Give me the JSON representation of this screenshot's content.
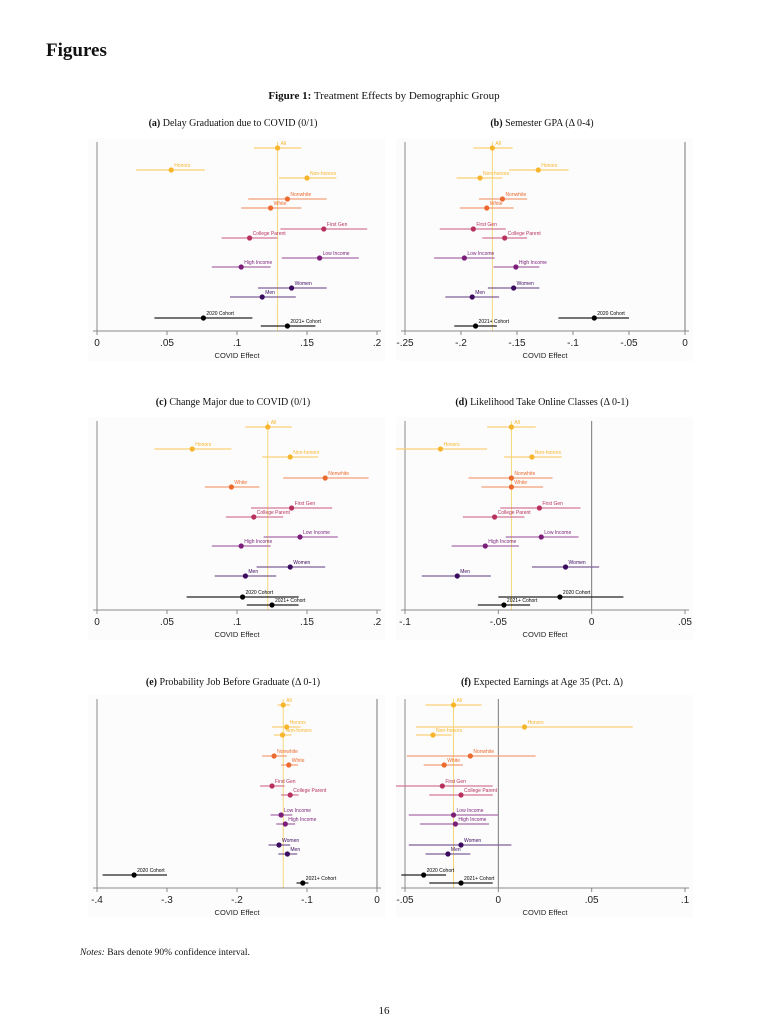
{
  "page": {
    "section_heading": "Figures",
    "figure_label": "Figure 1:",
    "figure_title": "Treatment Effects by Demographic Group",
    "notes_label": "Notes:",
    "notes_text": "Bars denote 90% confidence interval.",
    "page_number": "16"
  },
  "colors": {
    "honors_group": "#F7B52C",
    "race_group": "#EC6A2E",
    "firstgen_group": "#B8315E",
    "income_group": "#7A1E7A",
    "gender_group": "#3A0B5E",
    "cohort_group": "#000000",
    "reference_line": "#F5D46A",
    "zero_line": "#777777"
  },
  "chart_data": [
    {
      "id": "a",
      "type": "scatter",
      "panel_label": "(a)",
      "title": "Delay Graduation due to COVID (0/1)",
      "xlabel": "COVID Effect",
      "xlim": [
        0,
        0.2
      ],
      "xticks": [
        0,
        0.05,
        0.1,
        0.15,
        0.2
      ],
      "xtick_labels": [
        "0",
        ".05",
        ".1",
        ".15",
        ".2"
      ],
      "reference_value": 0.129,
      "points": [
        {
          "label": "All",
          "group": "honors_group",
          "est": 0.129,
          "lo": 0.112,
          "hi": 0.146
        },
        {
          "label": "Honors",
          "group": "honors_group",
          "est": 0.053,
          "lo": 0.028,
          "hi": 0.077
        },
        {
          "label": "Non-honors",
          "group": "honors_group",
          "est": 0.15,
          "lo": 0.13,
          "hi": 0.171
        },
        {
          "label": "Nonwhite",
          "group": "race_group",
          "est": 0.136,
          "lo": 0.108,
          "hi": 0.164
        },
        {
          "label": "White",
          "group": "race_group",
          "est": 0.124,
          "lo": 0.103,
          "hi": 0.146
        },
        {
          "label": "First Gen",
          "group": "firstgen_group",
          "est": 0.162,
          "lo": 0.131,
          "hi": 0.193
        },
        {
          "label": "College Parent",
          "group": "firstgen_group",
          "est": 0.109,
          "lo": 0.089,
          "hi": 0.129
        },
        {
          "label": "Low Income",
          "group": "income_group",
          "est": 0.159,
          "lo": 0.132,
          "hi": 0.187
        },
        {
          "label": "High Income",
          "group": "income_group",
          "est": 0.103,
          "lo": 0.082,
          "hi": 0.124
        },
        {
          "label": "Women",
          "group": "gender_group",
          "est": 0.139,
          "lo": 0.115,
          "hi": 0.164
        },
        {
          "label": "Men",
          "group": "gender_group",
          "est": 0.118,
          "lo": 0.095,
          "hi": 0.142
        },
        {
          "label": "2020 Cohort",
          "group": "cohort_group",
          "est": 0.076,
          "lo": 0.041,
          "hi": 0.111
        },
        {
          "label": "2021+ Cohort",
          "group": "cohort_group",
          "est": 0.136,
          "lo": 0.117,
          "hi": 0.156
        }
      ]
    },
    {
      "id": "b",
      "type": "scatter",
      "panel_label": "(b)",
      "title": "Semester GPA (Δ 0-4)",
      "xlabel": "COVID Effect",
      "xlim": [
        -0.25,
        0
      ],
      "xticks": [
        -0.25,
        -0.2,
        -0.15,
        -0.1,
        -0.05,
        0
      ],
      "xtick_labels": [
        "-.25",
        "-.2",
        "-.15",
        "-.1",
        "-.05",
        "0"
      ],
      "reference_value": -0.172,
      "points": [
        {
          "label": "All",
          "group": "honors_group",
          "est": -0.172,
          "lo": -0.189,
          "hi": -0.154
        },
        {
          "label": "Honors",
          "group": "honors_group",
          "est": -0.131,
          "lo": -0.157,
          "hi": -0.104
        },
        {
          "label": "Non-honors",
          "group": "honors_group",
          "est": -0.183,
          "lo": -0.204,
          "hi": -0.163
        },
        {
          "label": "Nonwhite",
          "group": "race_group",
          "est": -0.163,
          "lo": -0.184,
          "hi": -0.141
        },
        {
          "label": "White",
          "group": "race_group",
          "est": -0.177,
          "lo": -0.201,
          "hi": -0.153
        },
        {
          "label": "First Gen",
          "group": "firstgen_group",
          "est": -0.189,
          "lo": -0.219,
          "hi": -0.16
        },
        {
          "label": "College Parent",
          "group": "firstgen_group",
          "est": -0.161,
          "lo": -0.181,
          "hi": -0.141
        },
        {
          "label": "Low Income",
          "group": "income_group",
          "est": -0.197,
          "lo": -0.224,
          "hi": -0.17
        },
        {
          "label": "High Income",
          "group": "income_group",
          "est": -0.151,
          "lo": -0.171,
          "hi": -0.13
        },
        {
          "label": "Women",
          "group": "gender_group",
          "est": -0.153,
          "lo": -0.176,
          "hi": -0.13
        },
        {
          "label": "Men",
          "group": "gender_group",
          "est": -0.19,
          "lo": -0.214,
          "hi": -0.166
        },
        {
          "label": "2020 Cohort",
          "group": "cohort_group",
          "est": -0.081,
          "lo": -0.113,
          "hi": -0.05
        },
        {
          "label": "2021+ Cohort",
          "group": "cohort_group",
          "est": -0.187,
          "lo": -0.206,
          "hi": -0.168
        }
      ]
    },
    {
      "id": "c",
      "type": "scatter",
      "panel_label": "(c)",
      "title": "Change Major due to COVID (0/1)",
      "xlabel": "COVID Effect",
      "xlim": [
        0,
        0.2
      ],
      "xticks": [
        0,
        0.05,
        0.1,
        0.15,
        0.2
      ],
      "xtick_labels": [
        "0",
        ".05",
        ".1",
        ".15",
        ".2"
      ],
      "reference_value": 0.122,
      "points": [
        {
          "label": "All",
          "group": "honors_group",
          "est": 0.122,
          "lo": 0.106,
          "hi": 0.139
        },
        {
          "label": "Honors",
          "group": "honors_group",
          "est": 0.068,
          "lo": 0.041,
          "hi": 0.096
        },
        {
          "label": "Non-honors",
          "group": "honors_group",
          "est": 0.138,
          "lo": 0.118,
          "hi": 0.158
        },
        {
          "label": "Nonwhite",
          "group": "race_group",
          "est": 0.163,
          "lo": 0.133,
          "hi": 0.194
        },
        {
          "label": "White",
          "group": "race_group",
          "est": 0.096,
          "lo": 0.077,
          "hi": 0.116
        },
        {
          "label": "First Gen",
          "group": "firstgen_group",
          "est": 0.139,
          "lo": 0.11,
          "hi": 0.168
        },
        {
          "label": "College Parent",
          "group": "firstgen_group",
          "est": 0.112,
          "lo": 0.092,
          "hi": 0.133
        },
        {
          "label": "Low Income",
          "group": "income_group",
          "est": 0.145,
          "lo": 0.119,
          "hi": 0.172
        },
        {
          "label": "High Income",
          "group": "income_group",
          "est": 0.103,
          "lo": 0.082,
          "hi": 0.124
        },
        {
          "label": "Women",
          "group": "gender_group",
          "est": 0.138,
          "lo": 0.114,
          "hi": 0.163
        },
        {
          "label": "Men",
          "group": "gender_group",
          "est": 0.106,
          "lo": 0.084,
          "hi": 0.128
        },
        {
          "label": "2020 Cohort",
          "group": "cohort_group",
          "est": 0.104,
          "lo": 0.064,
          "hi": 0.144
        },
        {
          "label": "2021+ Cohort",
          "group": "cohort_group",
          "est": 0.125,
          "lo": 0.107,
          "hi": 0.144
        }
      ]
    },
    {
      "id": "d",
      "type": "scatter",
      "panel_label": "(d)",
      "title": "Likelihood Take Online Classes (Δ 0-1)",
      "xlabel": "COVID Effect",
      "xlim": [
        -0.1,
        0.05
      ],
      "xticks": [
        -0.1,
        -0.05,
        0,
        0.05
      ],
      "xtick_labels": [
        "-.1",
        "-.05",
        "0",
        ".05"
      ],
      "reference_value": -0.043,
      "points": [
        {
          "label": "All",
          "group": "honors_group",
          "est": -0.043,
          "lo": -0.056,
          "hi": -0.03
        },
        {
          "label": "Honors",
          "group": "honors_group",
          "est": -0.081,
          "lo": -0.107,
          "hi": -0.056
        },
        {
          "label": "Non-honors",
          "group": "honors_group",
          "est": -0.032,
          "lo": -0.047,
          "hi": -0.016
        },
        {
          "label": "Nonwhite",
          "group": "race_group",
          "est": -0.043,
          "lo": -0.066,
          "hi": -0.021
        },
        {
          "label": "White",
          "group": "race_group",
          "est": -0.043,
          "lo": -0.059,
          "hi": -0.026
        },
        {
          "label": "First Gen",
          "group": "firstgen_group",
          "est": -0.028,
          "lo": -0.049,
          "hi": -0.006
        },
        {
          "label": "College Parent",
          "group": "firstgen_group",
          "est": -0.052,
          "lo": -0.069,
          "hi": -0.036
        },
        {
          "label": "Low Income",
          "group": "income_group",
          "est": -0.027,
          "lo": -0.046,
          "hi": -0.007
        },
        {
          "label": "High Income",
          "group": "income_group",
          "est": -0.057,
          "lo": -0.075,
          "hi": -0.039
        },
        {
          "label": "Women",
          "group": "gender_group",
          "est": -0.014,
          "lo": -0.032,
          "hi": 0.004
        },
        {
          "label": "Men",
          "group": "gender_group",
          "est": -0.072,
          "lo": -0.091,
          "hi": -0.054
        },
        {
          "label": "2020 Cohort",
          "group": "cohort_group",
          "est": -0.017,
          "lo": -0.05,
          "hi": 0.017
        },
        {
          "label": "2021+ Cohort",
          "group": "cohort_group",
          "est": -0.047,
          "lo": -0.061,
          "hi": -0.033
        }
      ]
    },
    {
      "id": "e",
      "type": "scatter",
      "panel_label": "(e)",
      "title": "Probability Job Before Graduate (Δ 0-1)",
      "xlabel": "COVID Effect",
      "xlim": [
        -0.4,
        0
      ],
      "xticks": [
        -0.4,
        -0.3,
        -0.2,
        -0.1,
        0
      ],
      "xtick_labels": [
        "-.4",
        "-.3",
        "-.2",
        "-.1",
        "0"
      ],
      "reference_value": -0.134,
      "points": [
        {
          "label": "All",
          "group": "honors_group",
          "est": -0.134,
          "lo": -0.142,
          "hi": -0.124
        },
        {
          "label": "Honors",
          "group": "honors_group",
          "est": -0.129,
          "lo": -0.15,
          "hi": -0.109
        },
        {
          "label": "Non-honors",
          "group": "honors_group",
          "est": -0.135,
          "lo": -0.147,
          "hi": -0.122
        },
        {
          "label": "Nonwhite",
          "group": "race_group",
          "est": -0.147,
          "lo": -0.164,
          "hi": -0.129
        },
        {
          "label": "White",
          "group": "race_group",
          "est": -0.126,
          "lo": -0.137,
          "hi": -0.113
        },
        {
          "label": "First Gen",
          "group": "firstgen_group",
          "est": -0.15,
          "lo": -0.167,
          "hi": -0.132
        },
        {
          "label": "College Parent",
          "group": "firstgen_group",
          "est": -0.124,
          "lo": -0.137,
          "hi": -0.112
        },
        {
          "label": "Low Income",
          "group": "income_group",
          "est": -0.137,
          "lo": -0.152,
          "hi": -0.121
        },
        {
          "label": "High Income",
          "group": "income_group",
          "est": -0.131,
          "lo": -0.144,
          "hi": -0.117
        },
        {
          "label": "Women",
          "group": "gender_group",
          "est": -0.14,
          "lo": -0.155,
          "hi": -0.124
        },
        {
          "label": "Men",
          "group": "gender_group",
          "est": -0.128,
          "lo": -0.141,
          "hi": -0.114
        },
        {
          "label": "2020 Cohort",
          "group": "cohort_group",
          "est": -0.347,
          "lo": -0.392,
          "hi": -0.3
        },
        {
          "label": "2021+ Cohort",
          "group": "cohort_group",
          "est": -0.106,
          "lo": -0.115,
          "hi": -0.098
        }
      ]
    },
    {
      "id": "f",
      "type": "scatter",
      "panel_label": "(f)",
      "title": "Expected Earnings at Age 35 (Pct. Δ)",
      "xlabel": "COVID Effect",
      "xlim": [
        -0.05,
        0.1
      ],
      "xticks": [
        -0.05,
        0,
        0.05,
        0.1
      ],
      "xtick_labels": [
        "-.05",
        "0",
        ".05",
        ".1"
      ],
      "reference_value": -0.024,
      "points": [
        {
          "label": "All",
          "group": "honors_group",
          "est": -0.024,
          "lo": -0.039,
          "hi": -0.009
        },
        {
          "label": "Honors",
          "group": "honors_group",
          "est": 0.014,
          "lo": -0.044,
          "hi": 0.072
        },
        {
          "label": "Non-honors",
          "group": "honors_group",
          "est": -0.035,
          "lo": -0.044,
          "hi": -0.025
        },
        {
          "label": "Nonwhite",
          "group": "race_group",
          "est": -0.015,
          "lo": -0.049,
          "hi": 0.02
        },
        {
          "label": "White",
          "group": "race_group",
          "est": -0.029,
          "lo": -0.04,
          "hi": -0.019
        },
        {
          "label": "First Gen",
          "group": "firstgen_group",
          "est": -0.03,
          "lo": -0.056,
          "hi": -0.003
        },
        {
          "label": "College Parent",
          "group": "firstgen_group",
          "est": -0.02,
          "lo": -0.037,
          "hi": -0.003
        },
        {
          "label": "Low Income",
          "group": "income_group",
          "est": -0.024,
          "lo": -0.048,
          "hi": 0.0
        },
        {
          "label": "High Income",
          "group": "income_group",
          "est": -0.023,
          "lo": -0.042,
          "hi": -0.005
        },
        {
          "label": "Women",
          "group": "gender_group",
          "est": -0.02,
          "lo": -0.048,
          "hi": 0.007
        },
        {
          "label": "Men",
          "group": "gender_group",
          "est": -0.027,
          "lo": -0.039,
          "hi": -0.015
        },
        {
          "label": "2020 Cohort",
          "group": "cohort_group",
          "est": -0.04,
          "lo": -0.052,
          "hi": -0.028
        },
        {
          "label": "2021+ Cohort",
          "group": "cohort_group",
          "est": -0.02,
          "lo": -0.037,
          "hi": -0.003
        }
      ]
    }
  ]
}
